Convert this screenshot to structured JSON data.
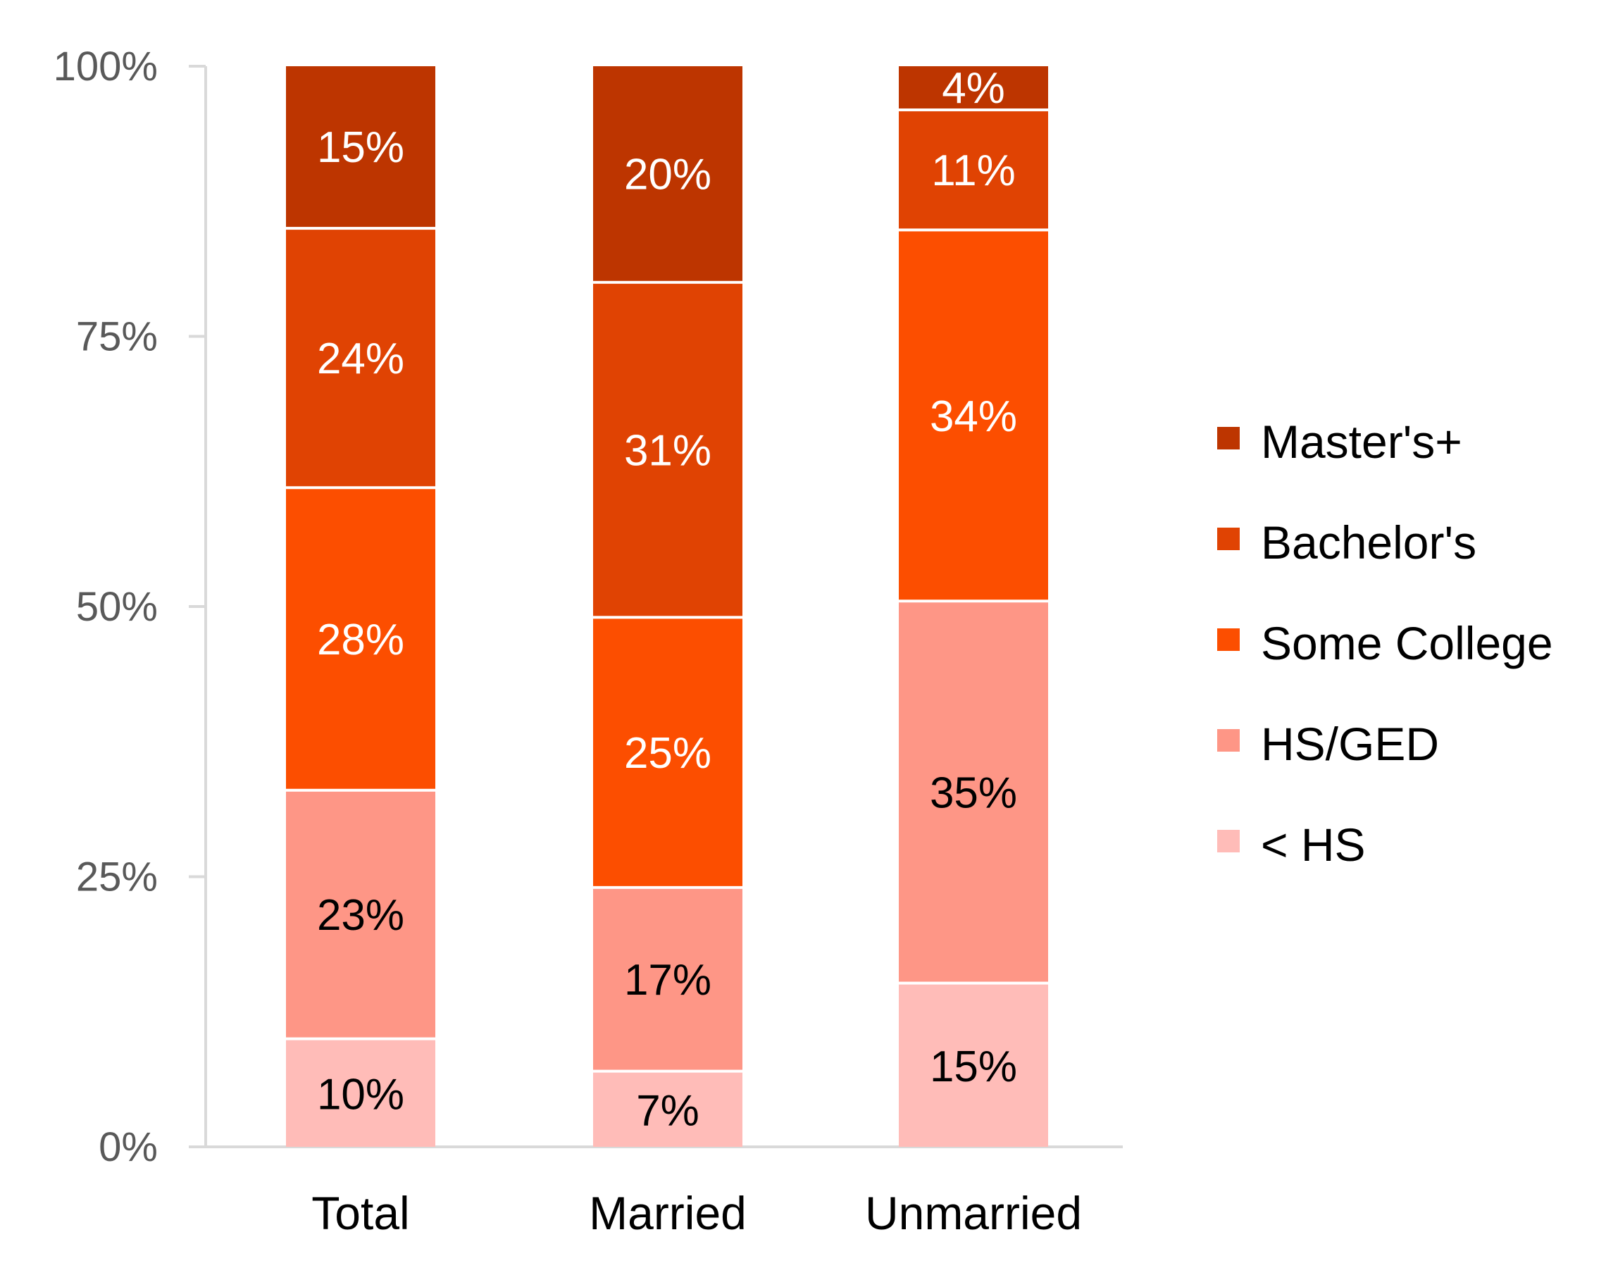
{
  "chart_data": {
    "type": "bar",
    "stacked": true,
    "categories": [
      "Total",
      "Married",
      "Unmarried"
    ],
    "series": [
      {
        "name": "< HS",
        "values": [
          10,
          7,
          15
        ],
        "color": "#FFBCB8",
        "label_color": "#000000"
      },
      {
        "name": "HS/GED",
        "values": [
          23,
          17,
          35
        ],
        "color": "#FE9686",
        "label_color": "#000000"
      },
      {
        "name": "Some College",
        "values": [
          28,
          25,
          34
        ],
        "color": "#FC4E00",
        "label_color": "#ffffff"
      },
      {
        "name": "Bachelor's",
        "values": [
          24,
          31,
          11
        ],
        "color": "#E04303",
        "label_color": "#ffffff"
      },
      {
        "name": "Master's+",
        "values": [
          15,
          20,
          4
        ],
        "color": "#BD3500",
        "label_color": "#ffffff"
      }
    ],
    "data_labels": [
      [
        "10%",
        "7%",
        "15%"
      ],
      [
        "23%",
        "17%",
        "35%"
      ],
      [
        "28%",
        "25%",
        "34%"
      ],
      [
        "24%",
        "31%",
        "11%"
      ],
      [
        "15%",
        "20%",
        "4%"
      ]
    ],
    "y_ticks": [
      0,
      25,
      50,
      75,
      100
    ],
    "y_tick_labels": [
      "0%",
      "25%",
      "50%",
      "75%",
      "100%"
    ],
    "ylim": [
      0,
      100
    ],
    "title": "",
    "xlabel": "",
    "ylabel": "",
    "grid": false,
    "legend_position": "right",
    "axis_color": "#D9D9D9"
  }
}
